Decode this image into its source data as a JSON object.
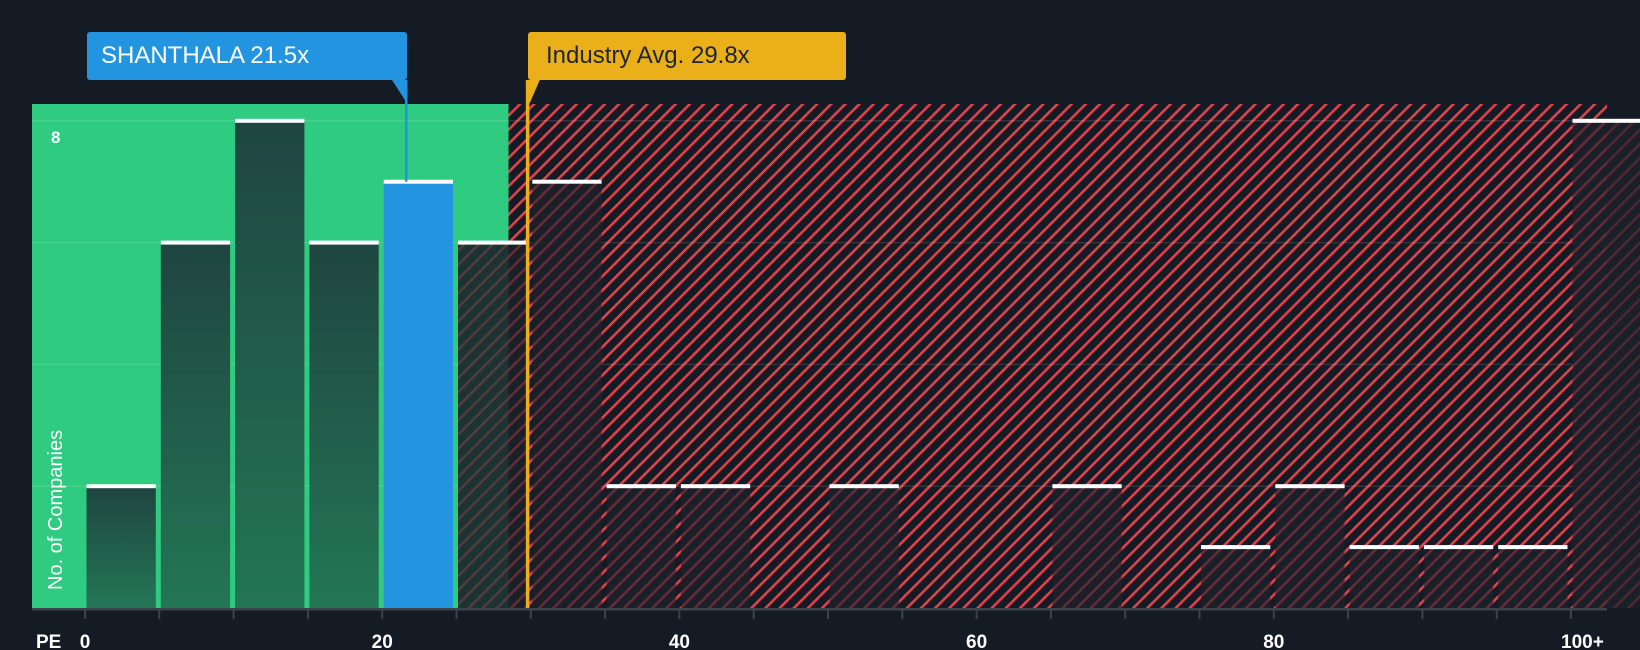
{
  "chart_data": {
    "type": "bar",
    "title": "",
    "xlabel": "PE",
    "ylabel": "No. of Companies",
    "x_tick_labels": [
      "0",
      "20",
      "40",
      "60",
      "80",
      "100+"
    ],
    "y_tick_labels": [
      "8"
    ],
    "ylim": [
      0,
      8.3
    ],
    "bin_width": 5,
    "categories": [
      "0-5",
      "5-10",
      "10-15",
      "15-20",
      "20-25",
      "25-30",
      "30-35",
      "35-40",
      "40-45",
      "45-50",
      "50-55",
      "55-60",
      "60-65",
      "65-70",
      "70-75",
      "75-80",
      "80-85",
      "85-90",
      "90-95",
      "95-100",
      "100+"
    ],
    "values": [
      2,
      6,
      8,
      6,
      7,
      6,
      7,
      2,
      2,
      0,
      2,
      0,
      0,
      2,
      0,
      1,
      2,
      1,
      1,
      1,
      8
    ],
    "highlight_bin_index": 4,
    "company": {
      "name": "SHANTHALA",
      "pe": 21.5,
      "label": "SHANTHALA 21.5x"
    },
    "industry_avg": {
      "pe": 29.8,
      "label": "Industry Avg. 29.8x"
    },
    "undervalued_region_end_pe": 28.5,
    "grid": true,
    "legend": null
  },
  "colors": {
    "background": "#151b24",
    "undervalued_zone": "#2ecb80",
    "overvalued_hatch": "#e0414a",
    "bar_in_green": "#1f4a40",
    "bar_highlight": "#2394e0",
    "bar_in_red": "#1c212b",
    "bar_cap": "#ffffff",
    "industry_line": "#ebb019",
    "company_line": "#2394e0",
    "axis": "#3c434e",
    "text": "#ffffff"
  }
}
